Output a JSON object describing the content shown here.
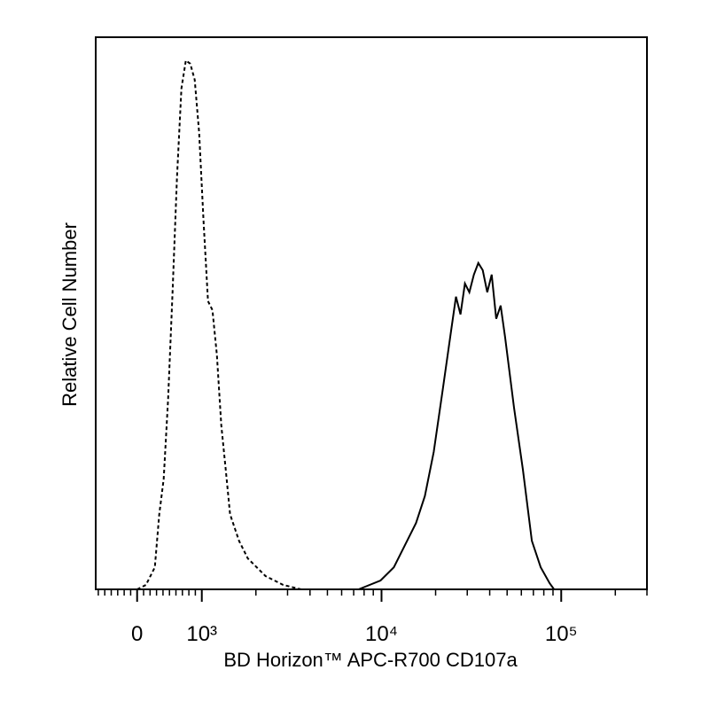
{
  "chart_data": {
    "type": "line",
    "x_label": "BD Horizon™ APC-R700 CD107a",
    "y_label": "Relative Cell Number",
    "x_scale": "biexponential",
    "xlim": [
      -640,
      300000
    ],
    "ylim": [
      0,
      100
    ],
    "xticks": [
      0,
      {
        "value": 1000,
        "label": "10³"
      },
      {
        "value": 10000,
        "label": "10⁴"
      },
      {
        "value": 100000,
        "label": "10⁵"
      }
    ],
    "xminorticks": [
      -600,
      -500,
      -400,
      -300,
      -200,
      -100,
      100,
      200,
      300,
      400,
      500,
      600,
      700,
      800,
      900,
      2000,
      3000,
      4000,
      5000,
      6000,
      7000,
      8000,
      9000,
      20000,
      30000,
      40000,
      50000,
      60000,
      70000,
      80000,
      90000,
      200000,
      300000
    ],
    "series": [
      {
        "color": "#000000",
        "dashed": true,
        "x": [
          0,
          137,
          274,
          342,
          411,
          479,
          548,
          616,
          685,
          753,
          822,
          890,
          959,
          1023,
          1083,
          1146,
          1213,
          1284,
          1359,
          1437,
          1610,
          1803,
          2263,
          2840,
          3565,
          8800,
          85000
        ],
        "values": [
          0,
          0.8,
          4,
          13.6,
          20,
          34.5,
          53.8,
          74.6,
          90.7,
          95.8,
          95.2,
          92.3,
          82.7,
          66.6,
          52.2,
          50.6,
          42.5,
          29.7,
          21.7,
          13.6,
          8.8,
          5.6,
          2.4,
          0.8,
          0,
          0,
          0
        ]
      },
      {
        "color": "#000000",
        "dashed": false,
        "x": [
          7450,
          9880,
          11710,
          13880,
          15550,
          17430,
          19530,
          21890,
          24530,
          25970,
          27500,
          29120,
          30830,
          32650,
          34570,
          36600,
          38760,
          41040,
          43460,
          46010,
          48720,
          54610,
          61220,
          68620,
          76920,
          86220,
          91280
        ],
        "values": [
          0,
          1.6,
          4,
          8.8,
          12,
          16.9,
          24.9,
          36.1,
          47.4,
          53,
          49.8,
          55.4,
          53.8,
          57,
          59.1,
          57.8,
          53.8,
          57,
          49,
          51.4,
          45.7,
          32.9,
          21.7,
          8.8,
          4,
          1.1,
          0
        ]
      }
    ]
  }
}
